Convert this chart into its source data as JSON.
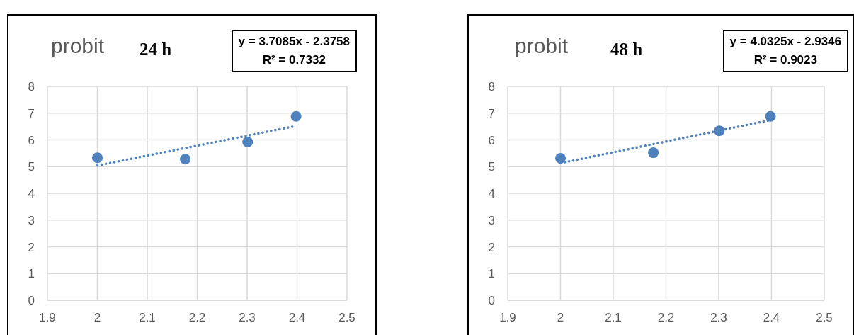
{
  "chart_data": [
    {
      "type": "scatter",
      "title": "24 h",
      "ylabel": "probit",
      "annotations": [
        "y = 3.7085x - 2.3758",
        "R² = 0.7332"
      ],
      "xlim": [
        1.9,
        2.5
      ],
      "xticks": [
        1.9,
        2,
        2.1,
        2.2,
        2.3,
        2.4,
        2.5
      ],
      "ylim": [
        0,
        8
      ],
      "yticks": [
        0,
        1,
        2,
        3,
        4,
        5,
        6,
        7,
        8
      ],
      "grid": true,
      "legend": false,
      "series": [
        {
          "type": "scatter",
          "marker": "circle",
          "color": "#4f81bd",
          "x": [
            2,
            2.176,
            2.301,
            2.398
          ],
          "values": [
            5.33,
            5.28,
            5.92,
            6.88
          ]
        },
        {
          "type": "line",
          "marker": "none",
          "line_style": "dotted",
          "color": "#4f81bd",
          "x": [
            2,
            2.398
          ],
          "values": [
            5.04,
            6.52
          ]
        }
      ]
    },
    {
      "type": "scatter",
      "title": "48 h",
      "ylabel": "probit",
      "annotations": [
        "y = 4.0325x - 2.9346",
        "R² = 0.9023"
      ],
      "xlim": [
        1.9,
        2.5
      ],
      "xticks": [
        1.9,
        2,
        2.1,
        2.2,
        2.3,
        2.4,
        2.5
      ],
      "ylim": [
        0,
        8
      ],
      "yticks": [
        0,
        1,
        2,
        3,
        4,
        5,
        6,
        7,
        8
      ],
      "grid": true,
      "legend": false,
      "series": [
        {
          "type": "scatter",
          "marker": "circle",
          "color": "#4f81bd",
          "x": [
            2,
            2.176,
            2.301,
            2.398
          ],
          "values": [
            5.31,
            5.52,
            6.34,
            6.88
          ]
        },
        {
          "type": "line",
          "marker": "none",
          "line_style": "dotted",
          "color": "#4f81bd",
          "x": [
            2,
            2.398
          ],
          "values": [
            5.13,
            6.74
          ]
        }
      ]
    }
  ]
}
